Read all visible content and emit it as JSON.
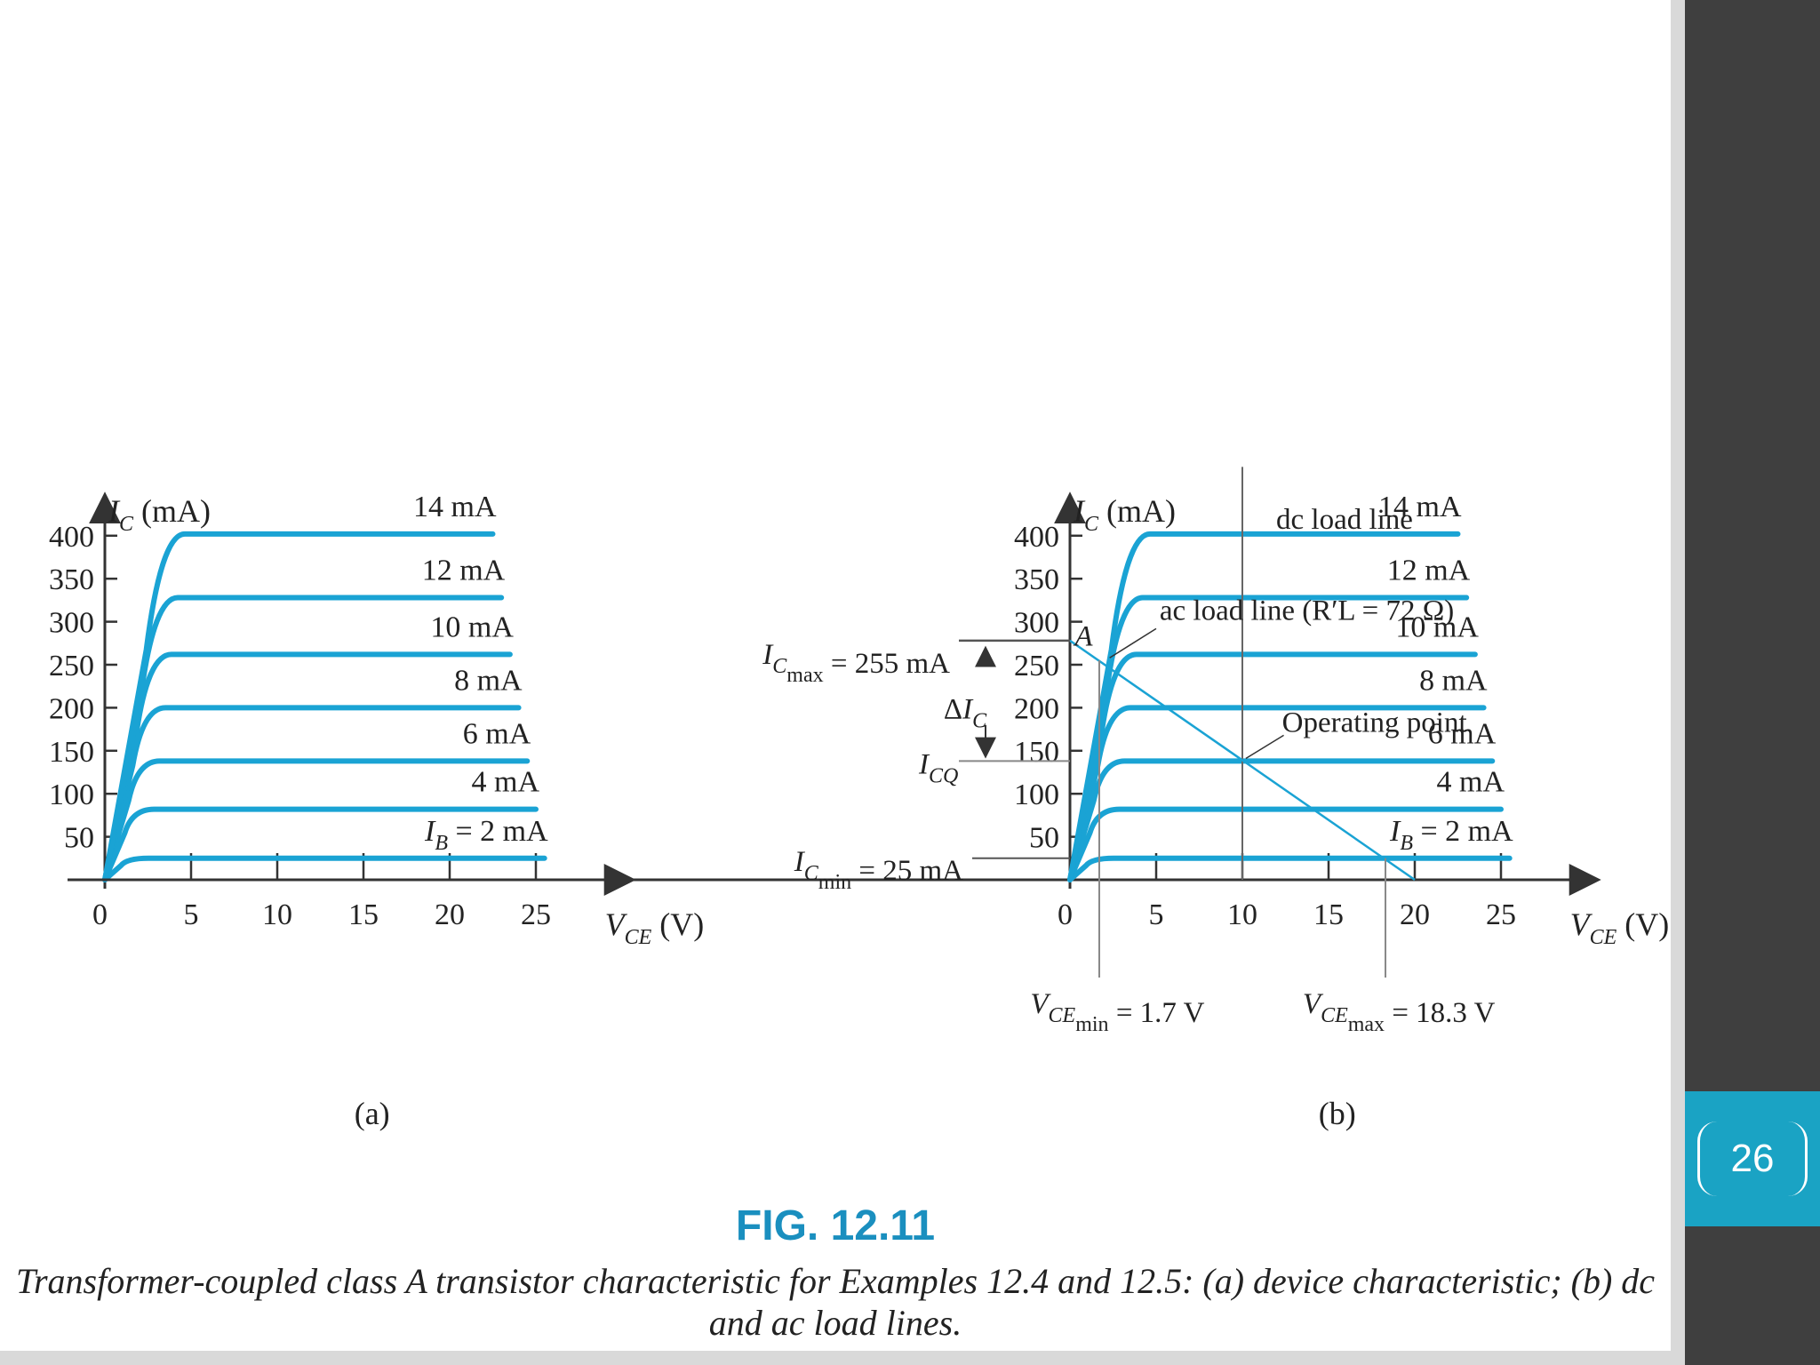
{
  "page_number": "26",
  "colors": {
    "curve": "#1aa3d4",
    "accent_title": "#1a8fbf",
    "sidebar": "#3f3f3f",
    "badge": "#1aa3c4"
  },
  "figure": {
    "title": "FIG. 12.11",
    "caption": "Transformer-coupled class A transistor characteristic for Examples 12.4 and 12.5: (a) device characteristic; (b) dc and ac load lines."
  },
  "chart_data": [
    {
      "type": "line",
      "panel_label": "(a)",
      "xlabel": "VCE (V)",
      "ylabel": "IC (mA)",
      "xlim": [
        0,
        30
      ],
      "ylim": [
        0,
        420
      ],
      "x_ticks": [
        "0",
        "5",
        "10",
        "15",
        "20",
        "25"
      ],
      "y_ticks": [
        "50",
        "100",
        "150",
        "200",
        "250",
        "300",
        "350",
        "400"
      ],
      "series": [
        {
          "name": "IB = 2 mA",
          "sat_ma": 25,
          "x_end": 25.5
        },
        {
          "name": "4 mA",
          "sat_ma": 82,
          "x_end": 25
        },
        {
          "name": "6 mA",
          "sat_ma": 138,
          "x_end": 24.5
        },
        {
          "name": "8 mA",
          "sat_ma": 200,
          "x_end": 24
        },
        {
          "name": "10 mA",
          "sat_ma": 262,
          "x_end": 23.5
        },
        {
          "name": "12 mA",
          "sat_ma": 328,
          "x_end": 23
        },
        {
          "name": "14 mA",
          "sat_ma": 402,
          "x_end": 22.5
        }
      ]
    },
    {
      "type": "line",
      "panel_label": "(b)",
      "xlabel": "VCE (V)",
      "ylabel": "IC (mA)",
      "xlim": [
        0,
        30
      ],
      "ylim": [
        0,
        420
      ],
      "x_ticks": [
        "0",
        "5",
        "10",
        "15",
        "20",
        "25"
      ],
      "y_ticks": [
        "50",
        "100",
        "150",
        "200",
        "250",
        "300",
        "350",
        "400"
      ],
      "series": [
        {
          "name": "IB = 2 mA",
          "sat_ma": 25,
          "x_end": 25.5
        },
        {
          "name": "4 mA",
          "sat_ma": 82,
          "x_end": 25
        },
        {
          "name": "6 mA",
          "sat_ma": 138,
          "x_end": 24.5
        },
        {
          "name": "8 mA",
          "sat_ma": 200,
          "x_end": 24
        },
        {
          "name": "10 mA",
          "sat_ma": 262,
          "x_end": 23.5
        },
        {
          "name": "12 mA",
          "sat_ma": 328,
          "x_end": 23
        },
        {
          "name": "14 mA",
          "sat_ma": 402,
          "x_end": 22.5
        }
      ],
      "dc_load_line": {
        "label": "dc load line",
        "vce": 10
      },
      "ac_load_line": {
        "label": "ac load line (R′L = 72 Ω)",
        "x": [
          0,
          20
        ],
        "y": [
          278,
          0
        ]
      },
      "operating_point": {
        "label": "Operating point",
        "vce": 10,
        "ic_ma": 138
      },
      "point_a": {
        "label": "A"
      },
      "annotations": {
        "ic_max": "= 255 mA",
        "ic_min": "= 25 mA",
        "delta_ic": "ΔIC",
        "icq": "ICQ",
        "vce_min": "= 1.7 V",
        "vce_max": "= 18.3 V",
        "ic_max_value": 255,
        "ic_min_value": 25,
        "vce_min_value": 1.7,
        "vce_max_value": 18.3
      }
    }
  ]
}
